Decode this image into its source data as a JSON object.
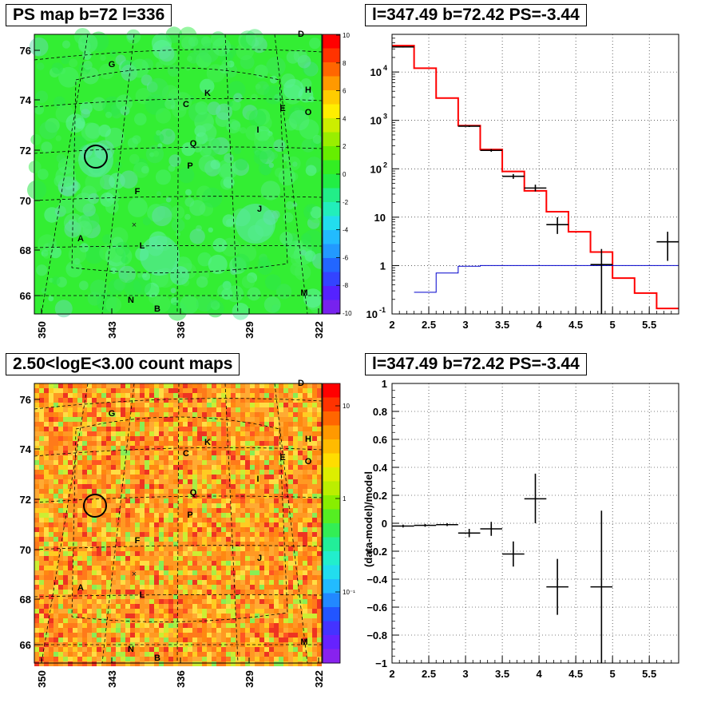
{
  "panels": {
    "ps_map": {
      "title": "PS map b=72 l=336",
      "y_ticks": [
        "76",
        "74",
        "72",
        "70",
        "68",
        "66"
      ],
      "x_ticks": [
        "350",
        "343",
        "336",
        "329",
        "322"
      ],
      "palette_ticks": [
        "10",
        "8",
        "6",
        "4",
        "2",
        "0",
        "-2",
        "-4",
        "-6",
        "-8",
        "-10"
      ],
      "source_labels": [
        "D",
        "G",
        "H",
        "K",
        "C",
        "E",
        "O",
        "I",
        "Q",
        "P",
        "F",
        "J",
        "A",
        "L",
        "M",
        "N",
        "B"
      ]
    },
    "count_map": {
      "title": "2.50<logE<3.00 count maps",
      "y_ticks": [
        "76",
        "74",
        "72",
        "70",
        "68",
        "66"
      ],
      "x_ticks": [
        "350",
        "343",
        "336",
        "329",
        "322"
      ],
      "palette_ticks": [
        "10",
        "1",
        "10⁻¹"
      ],
      "source_labels": [
        "D",
        "G",
        "H",
        "K",
        "C",
        "E",
        "O",
        "I",
        "Q",
        "P",
        "F",
        "J",
        "A",
        "L",
        "M",
        "N",
        "B"
      ]
    },
    "spectrum": {
      "title": "l=347.49 b=72.42 PS=-3.44"
    },
    "residual": {
      "title": "l=347.49 b=72.42 PS=-3.44"
    }
  },
  "chart_data": [
    {
      "type": "heatmap",
      "title": "PS map b=72 l=336",
      "xlabel": "",
      "ylabel": "",
      "x_range": [
        350,
        322
      ],
      "y_range": [
        65.5,
        76.8
      ],
      "colorbar_range": [
        -10,
        10
      ],
      "xticks": [
        350,
        343,
        336,
        329,
        322
      ],
      "yticks": [
        66,
        68,
        70,
        72,
        74,
        76
      ],
      "colors": {
        "dominant": "#33ee33",
        "secondary": "#44eeaa"
      }
    },
    {
      "type": "heatmap",
      "title": "2.50<logE<3.00 count maps",
      "x_range": [
        350,
        322
      ],
      "y_range": [
        65.5,
        76.8
      ],
      "colorbar_scale": "log",
      "colorbar_ticks": [
        "10",
        "1",
        "10^-1"
      ],
      "colors": {
        "dominant": "#ff9922",
        "secondary": "#ccee22"
      }
    },
    {
      "type": "line",
      "title": "l=347.49 b=72.42 PS=-3.44",
      "xlabel": "",
      "ylabel": "",
      "x_scale": "linear",
      "y_scale": "log",
      "xlim": [
        2,
        5.9
      ],
      "ylim": [
        0.1,
        60000
      ],
      "xticks": [
        2,
        2.5,
        3,
        3.5,
        4,
        4.5,
        5,
        5.5
      ],
      "yticks": [
        "10^-1",
        "1",
        "10",
        "10^2",
        "10^3",
        "10^4"
      ],
      "grid": true,
      "series": [
        {
          "color": "#ff0000",
          "style": "step",
          "edges": [
            2,
            2.3,
            2.6,
            2.9,
            3.2,
            3.5,
            3.8,
            4.1,
            4.4,
            4.7,
            5.0,
            5.3,
            5.6,
            5.9
          ],
          "values": [
            35000,
            12000,
            2900,
            780,
            250,
            88,
            35,
            13,
            5,
            1.9,
            0.55,
            0.27,
            0.13
          ]
        },
        {
          "color": "#0000cc",
          "style": "step",
          "edges": [
            2.3,
            2.6,
            2.9,
            3.2,
            3.5,
            5.9
          ],
          "values": [
            0.28,
            0.7,
            0.97,
            1.0,
            1.0
          ]
        },
        {
          "color": "#000000",
          "style": "errorbar",
          "points": [
            {
              "x": 2.15,
              "xerr": 0.15,
              "y": 33000,
              "ylo": 32000,
              "yhi": 34000
            },
            {
              "x": 3.05,
              "xerr": 0.15,
              "y": 760,
              "ylo": 730,
              "yhi": 790
            },
            {
              "x": 3.35,
              "xerr": 0.15,
              "y": 240,
              "ylo": 225,
              "yhi": 255
            },
            {
              "x": 3.65,
              "xerr": 0.15,
              "y": 70,
              "ylo": 62,
              "yhi": 78
            },
            {
              "x": 3.95,
              "xerr": 0.15,
              "y": 40,
              "ylo": 34,
              "yhi": 47
            },
            {
              "x": 4.25,
              "xerr": 0.15,
              "y": 7,
              "ylo": 4.5,
              "yhi": 10
            },
            {
              "x": 4.85,
              "xerr": 0.15,
              "y": 1.05,
              "ylo": 0.1,
              "yhi": 2.2
            },
            {
              "x": 5.75,
              "xerr": 0.15,
              "y": 3.1,
              "ylo": 1.25,
              "yhi": 5.0
            }
          ]
        }
      ]
    },
    {
      "type": "scatter",
      "title": "l=347.49 b=72.42 PS=-3.44",
      "xlabel": "",
      "ylabel": "(data-model)/model",
      "xlim": [
        2,
        5.9
      ],
      "ylim": [
        -1,
        1
      ],
      "xticks": [
        2,
        2.5,
        3,
        3.5,
        4,
        4.5,
        5,
        5.5
      ],
      "yticks": [
        -1,
        -0.8,
        -0.6,
        -0.4,
        -0.2,
        0,
        0.2,
        0.4,
        0.6,
        0.8,
        1
      ],
      "grid": true,
      "series": [
        {
          "color": "#000000",
          "style": "errorbar",
          "points": [
            {
              "x": 2.15,
              "xerr": 0.15,
              "y": -0.02,
              "ylo": -0.03,
              "yhi": -0.01
            },
            {
              "x": 2.45,
              "xerr": 0.15,
              "y": -0.015,
              "ylo": -0.025,
              "yhi": -0.005
            },
            {
              "x": 2.75,
              "xerr": 0.15,
              "y": -0.01,
              "ylo": -0.02,
              "yhi": 0.0
            },
            {
              "x": 3.05,
              "xerr": 0.15,
              "y": -0.07,
              "ylo": -0.1,
              "yhi": -0.04
            },
            {
              "x": 3.35,
              "xerr": 0.15,
              "y": -0.04,
              "ylo": -0.09,
              "yhi": 0.01
            },
            {
              "x": 3.65,
              "xerr": 0.15,
              "y": -0.22,
              "ylo": -0.31,
              "yhi": -0.13
            },
            {
              "x": 3.95,
              "xerr": 0.15,
              "y": 0.175,
              "ylo": 0.0,
              "yhi": 0.355
            },
            {
              "x": 4.25,
              "xerr": 0.15,
              "y": -0.455,
              "ylo": -0.655,
              "yhi": -0.255
            },
            {
              "x": 4.85,
              "xerr": 0.15,
              "y": -0.455,
              "ylo": -1.0,
              "yhi": 0.09
            }
          ]
        }
      ]
    }
  ]
}
